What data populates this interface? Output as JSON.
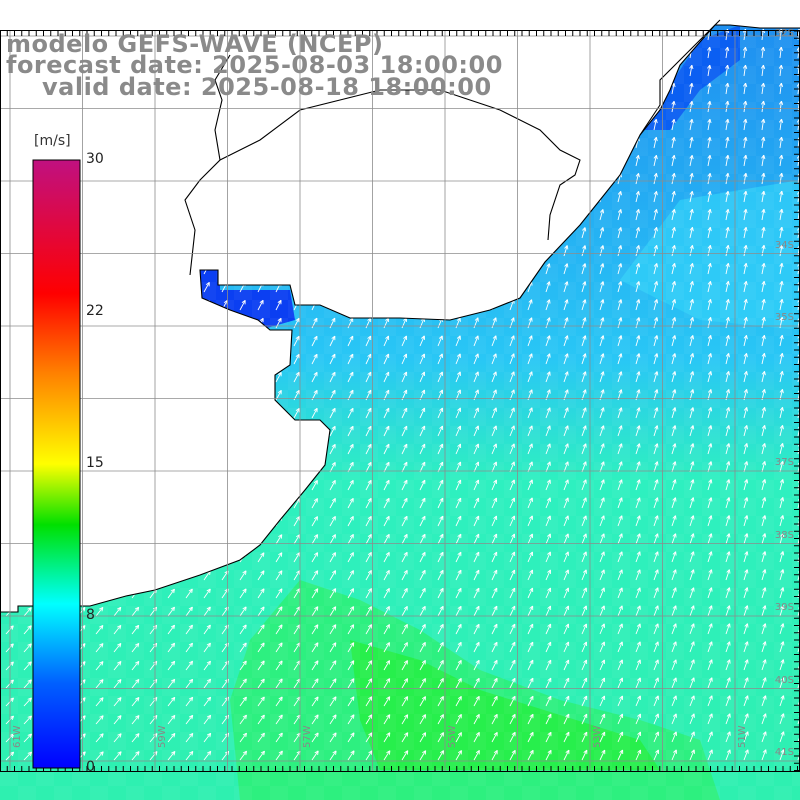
{
  "title": {
    "line1": "modelo GEFS-WAVE (NCEP)",
    "line2": "forecast date: 2025-08-03 18:00:00",
    "line3": "valid date: 2025-08-18 18:00:00"
  },
  "colorbar": {
    "unit": "[m/s]",
    "min": 0,
    "max": 30,
    "ticks": [
      "30",
      "22",
      "15",
      "8",
      "0"
    ],
    "tick_values": [
      30,
      22,
      15,
      8,
      0
    ]
  },
  "axes": {
    "lon_labels": [
      "61W",
      "59W",
      "57W",
      "55W",
      "53W",
      "51W"
    ],
    "lat_labels": [
      "32S",
      "34S",
      "35S",
      "37S",
      "38S",
      "39S",
      "40S",
      "41S"
    ]
  },
  "colors": {
    "dark_blue": "#0b3ff2",
    "blue": "#1e8bf0",
    "light_blue": "#29c7f5",
    "cyan_green": "#2ef0c0",
    "green": "#27f06a",
    "bright_green": "#22e032",
    "coast": "#000000",
    "grid": "#9a9a9a"
  }
}
